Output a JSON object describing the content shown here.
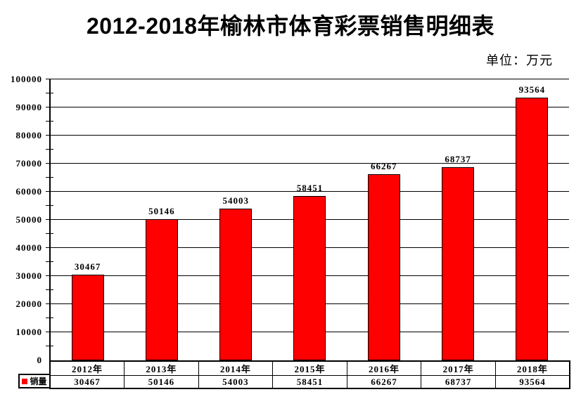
{
  "page": {
    "title": "2012-2018年榆林市体育彩票销售明细表",
    "unit_label": "单位：万元"
  },
  "legend": {
    "label": "销量",
    "swatch_color": "#ff0000"
  },
  "colors": {
    "bar": "#ff0000",
    "axis": "#000000",
    "grid": "#000000",
    "background": "#ffffff",
    "text": "#000000"
  },
  "chart_data": {
    "type": "bar",
    "title": "2012-2018年榆林市体育彩票销售明细表",
    "unit": "万元",
    "categories": [
      "2012年",
      "2013年",
      "2014年",
      "2015年",
      "2016年",
      "2017年",
      "2018年"
    ],
    "series": [
      {
        "name": "销量",
        "values": [
          30467,
          50146,
          54003,
          58451,
          66267,
          68737,
          93564
        ]
      }
    ],
    "xlabel": "",
    "ylabel": "",
    "ylim": [
      0,
      100000
    ],
    "yticks": [
      0,
      10000,
      20000,
      30000,
      40000,
      50000,
      60000,
      70000,
      80000,
      90000,
      100000
    ],
    "minor_tick_interval": 5000,
    "grid": true,
    "value_labels": true,
    "legend_position": "bottom-left",
    "data_table": true
  }
}
